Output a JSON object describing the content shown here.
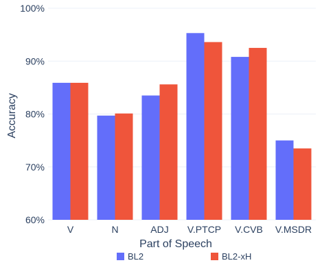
{
  "chart_data": {
    "type": "bar",
    "categories": [
      "V",
      "N",
      "ADJ",
      "V.PTCP",
      "V.CVB",
      "V.MSDR"
    ],
    "series": [
      {
        "name": "BL2",
        "color": "#636efa",
        "values": [
          85.9,
          79.7,
          83.5,
          95.3,
          90.8,
          75.0
        ]
      },
      {
        "name": "BL2-xH",
        "color": "#ef553b",
        "values": [
          85.9,
          80.1,
          85.6,
          93.6,
          92.5,
          73.5
        ]
      }
    ],
    "xlabel": "Part of Speech",
    "ylabel": "Accuracy",
    "ylim": [
      60,
      100
    ],
    "yticks": [
      60,
      70,
      80,
      90,
      100
    ],
    "ytick_suffix": "%",
    "grid": true,
    "grid_color": "#ebf0f8",
    "legend_position": "bottom"
  }
}
